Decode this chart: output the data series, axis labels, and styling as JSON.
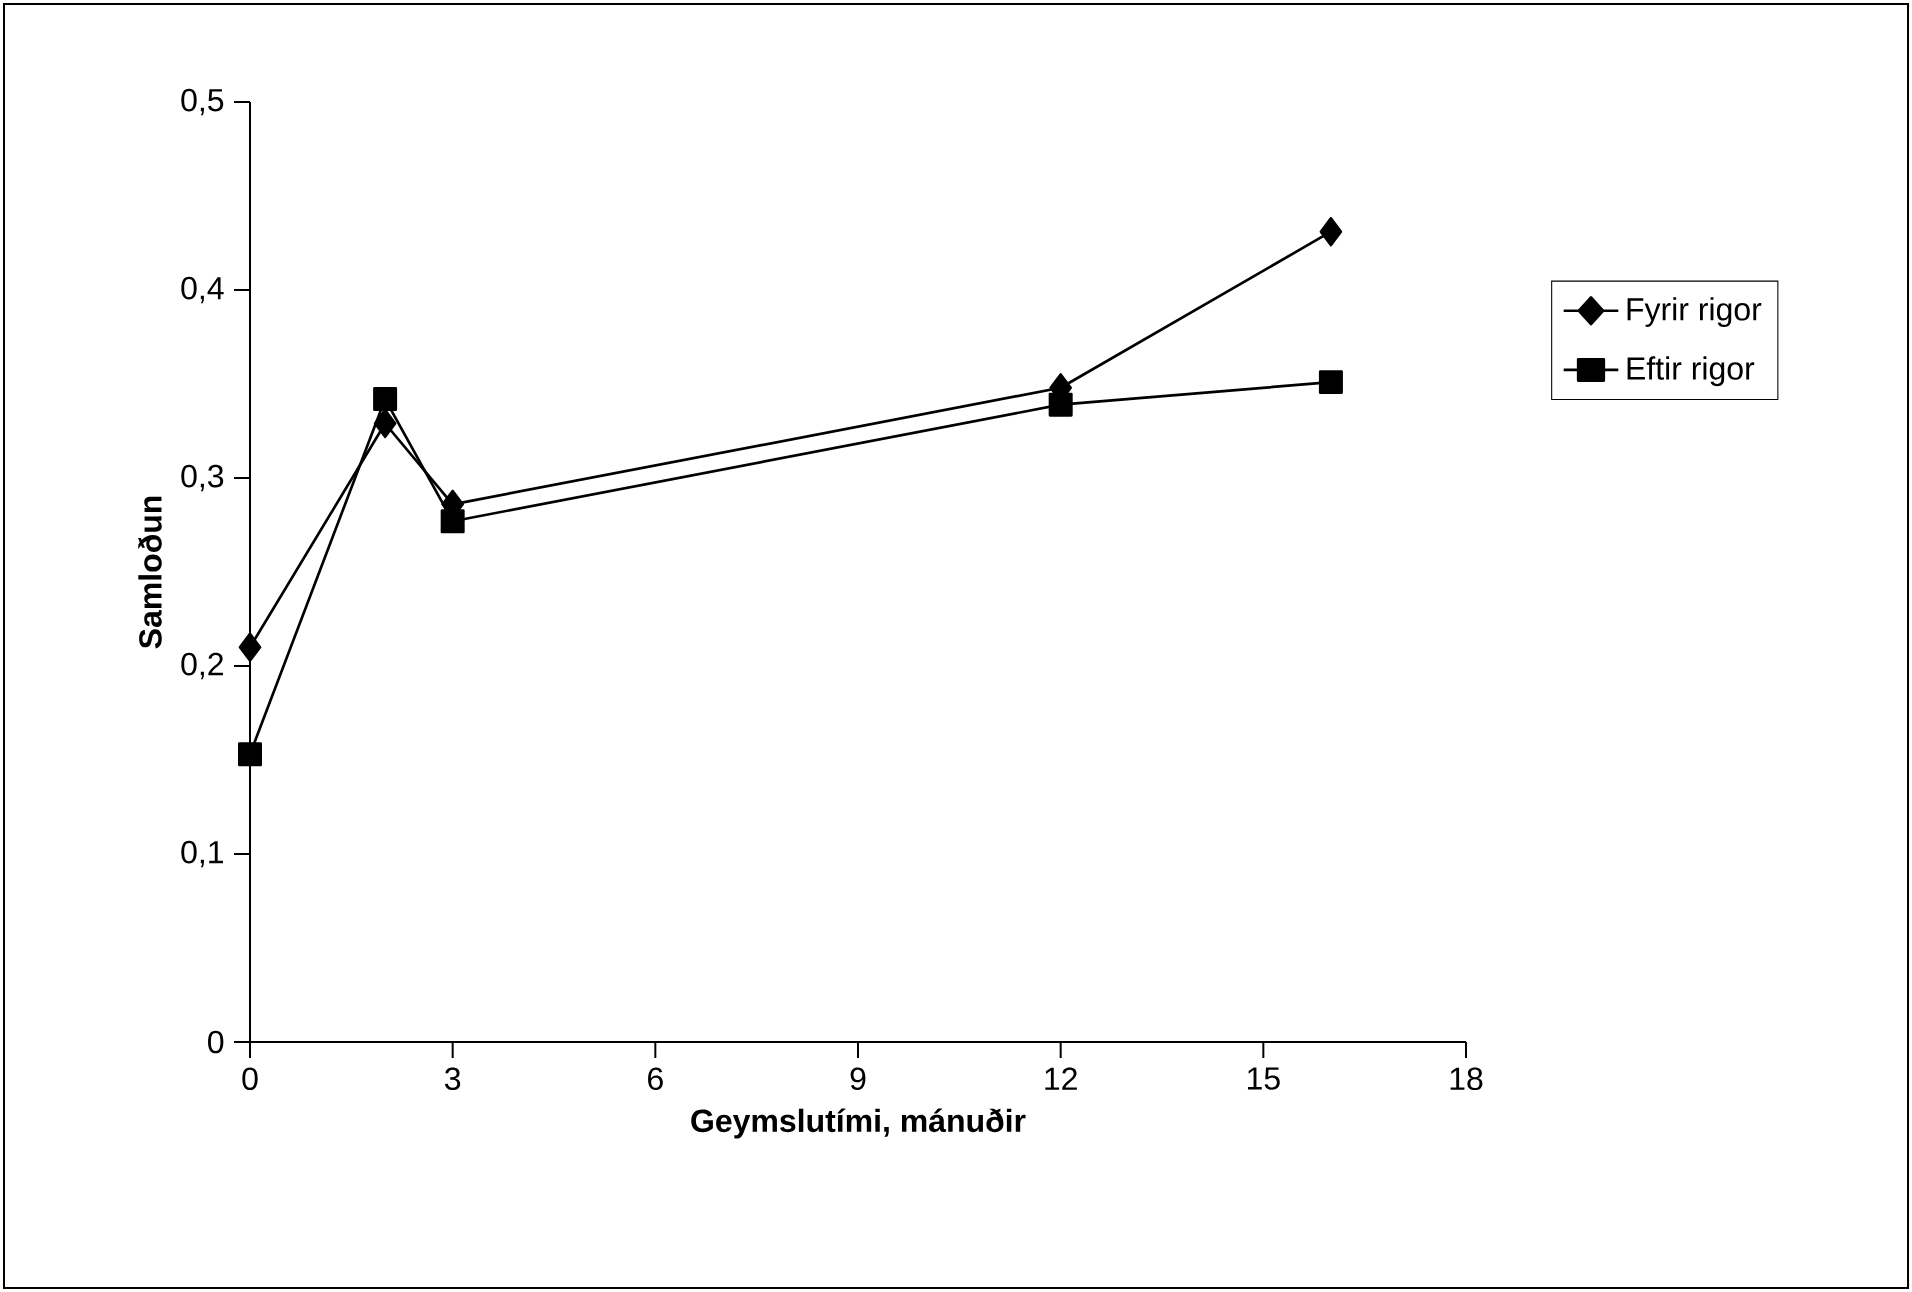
{
  "chart_data": {
    "type": "line",
    "xlabel": "Geymslutími, mánuðir",
    "ylabel": "Samloðun",
    "x": [
      0,
      2,
      3,
      12,
      16
    ],
    "series": [
      {
        "name": "Fyrir rigor",
        "color": "#000000",
        "marker": "diamond",
        "values": [
          0.21,
          0.329,
          0.286,
          0.348,
          0.431
        ]
      },
      {
        "name": "Eftir rigor",
        "color": "#000000",
        "marker": "square",
        "values": [
          0.153,
          0.342,
          0.277,
          0.339,
          0.351
        ]
      }
    ],
    "xlim": [
      0,
      18
    ],
    "xticks": [
      0,
      3,
      6,
      9,
      12,
      15,
      18
    ],
    "ylim": [
      0,
      0.5
    ],
    "yticks": [
      {
        "value": 0,
        "label": "0"
      },
      {
        "value": 0.1,
        "label": "0,1"
      },
      {
        "value": 0.2,
        "label": "0,2"
      },
      {
        "value": 0.3,
        "label": "0,3"
      },
      {
        "value": 0.4,
        "label": "0,4"
      },
      {
        "value": 0.5,
        "label": "0,5"
      }
    ],
    "grid": false,
    "legend": "right",
    "line_style": "solid"
  }
}
